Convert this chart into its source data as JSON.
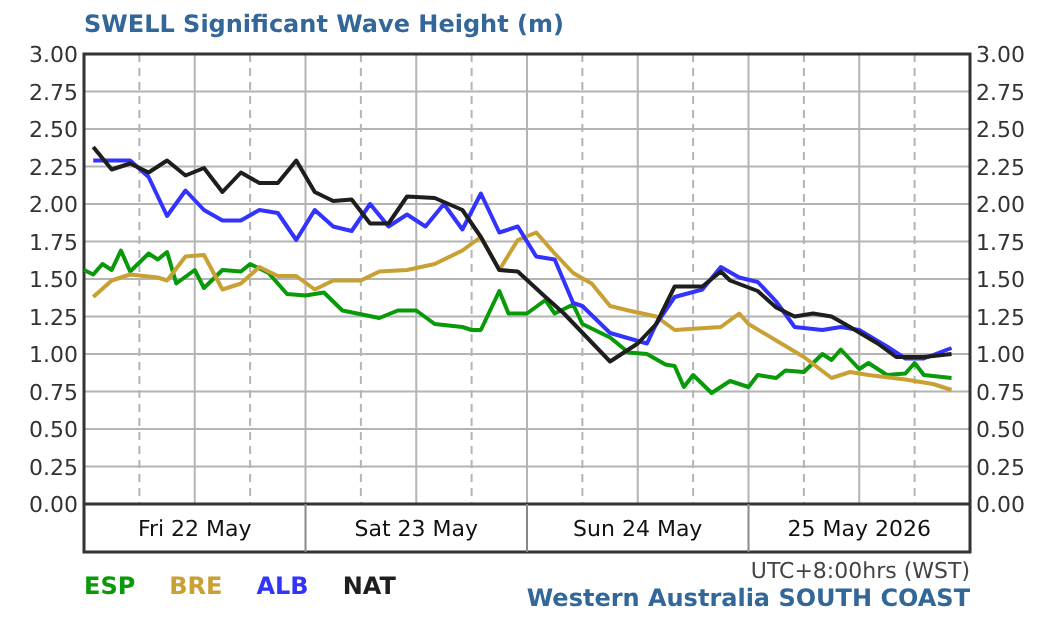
{
  "chart_data": {
    "type": "line",
    "title": "SWELL Significant Wave Height (m)",
    "annotations": [
      "UTC+8:00hrs (WST)",
      "Western Australia SOUTH COAST"
    ],
    "xlim": [
      "2026-05-22T00:00",
      "2026-05-26T00:00"
    ],
    "xticks": [
      {
        "value": "2026-05-22T00:00",
        "label": null
      },
      {
        "value": "2026-05-22T06:00",
        "label": null
      },
      {
        "value": "2026-05-22T12:00",
        "label": "Fri 22 May"
      },
      {
        "value": "2026-05-22T18:00",
        "label": null
      },
      {
        "value": "2026-05-23T00:00",
        "label": null
      },
      {
        "value": "2026-05-23T06:00",
        "label": null
      },
      {
        "value": "2026-05-23T12:00",
        "label": "Sat 23 May"
      },
      {
        "value": "2026-05-23T18:00",
        "label": null
      },
      {
        "value": "2026-05-24T00:00",
        "label": null
      },
      {
        "value": "2026-05-24T06:00",
        "label": null
      },
      {
        "value": "2026-05-24T12:00",
        "label": "Sun 24 May"
      },
      {
        "value": "2026-05-24T18:00",
        "label": null
      },
      {
        "value": "2026-05-25T00:00",
        "label": null
      },
      {
        "value": "2026-05-25T06:00",
        "label": null
      },
      {
        "value": "2026-05-25T12:00",
        "label": "25 May 2026"
      },
      {
        "value": "2026-05-25T18:00",
        "label": null
      },
      {
        "value": "2026-05-26T00:00",
        "label": null
      }
    ],
    "ylim": [
      0,
      3
    ],
    "yticks": [
      {
        "value": 0,
        "label": "0.00"
      },
      {
        "value": 0.25,
        "label": "0.25"
      },
      {
        "value": 0.5,
        "label": "0.50"
      },
      {
        "value": 0.75,
        "label": "0.75"
      },
      {
        "value": 1,
        "label": "1.00"
      },
      {
        "value": 1.25,
        "label": "1.25"
      },
      {
        "value": 1.5,
        "label": "1.50"
      },
      {
        "value": 1.75,
        "label": "1.75"
      },
      {
        "value": 2,
        "label": "2.00"
      },
      {
        "value": 2.25,
        "label": "2.25"
      },
      {
        "value": 2.5,
        "label": "2.50"
      },
      {
        "value": 2.75,
        "label": "2.75"
      },
      {
        "value": 3,
        "label": "3.00"
      }
    ],
    "y2lim": [
      0,
      3
    ],
    "y2ticks": [
      {
        "value": 0,
        "label": "0.00"
      },
      {
        "value": 0.25,
        "label": "0.25"
      },
      {
        "value": 0.5,
        "label": "0.50"
      },
      {
        "value": 0.75,
        "label": "0.75"
      },
      {
        "value": 1,
        "label": "1.00"
      },
      {
        "value": 1.25,
        "label": "1.25"
      },
      {
        "value": 1.5,
        "label": "1.50"
      },
      {
        "value": 1.75,
        "label": "1.75"
      },
      {
        "value": 2,
        "label": "2.00"
      },
      {
        "value": 2.25,
        "label": "2.25"
      },
      {
        "value": 2.5,
        "label": "2.50"
      },
      {
        "value": 2.75,
        "label": "2.75"
      },
      {
        "value": 3,
        "label": "3.00"
      }
    ],
    "grid": true,
    "legend": "bottom left",
    "marker": "none",
    "line_style": "solid",
    "series": [
      {
        "name": "ESP",
        "color": "#089a08",
        "x": [
          "2026-05-22T00:00",
          "2026-05-22T01:00",
          "2026-05-22T02:00",
          "2026-05-22T03:00",
          "2026-05-22T04:00",
          "2026-05-22T05:00",
          "2026-05-22T07:00",
          "2026-05-22T08:00",
          "2026-05-22T09:00",
          "2026-05-22T10:00",
          "2026-05-22T12:00",
          "2026-05-22T13:00",
          "2026-05-22T15:00",
          "2026-05-22T17:00",
          "2026-05-22T18:00",
          "2026-05-22T20:00",
          "2026-05-22T22:00",
          "2026-05-23T00:00",
          "2026-05-23T02:00",
          "2026-05-23T04:00",
          "2026-05-23T08:00",
          "2026-05-23T10:00",
          "2026-05-23T12:00",
          "2026-05-23T14:00",
          "2026-05-23T17:00",
          "2026-05-23T18:00",
          "2026-05-23T19:00",
          "2026-05-23T21:00",
          "2026-05-23T22:00",
          "2026-05-24T00:00",
          "2026-05-24T02:00",
          "2026-05-24T03:00",
          "2026-05-24T05:00",
          "2026-05-24T06:00",
          "2026-05-24T09:00",
          "2026-05-24T11:00",
          "2026-05-24T13:00",
          "2026-05-24T15:00",
          "2026-05-24T16:00",
          "2026-05-24T17:00",
          "2026-05-24T18:00",
          "2026-05-24T20:00",
          "2026-05-24T22:00",
          "2026-05-25T00:00",
          "2026-05-25T01:00",
          "2026-05-25T03:00",
          "2026-05-25T04:00",
          "2026-05-25T06:00",
          "2026-05-25T08:00",
          "2026-05-25T09:00",
          "2026-05-25T10:00",
          "2026-05-25T12:00",
          "2026-05-25T13:00",
          "2026-05-25T15:00",
          "2026-05-25T17:00",
          "2026-05-25T18:00",
          "2026-05-25T19:00",
          "2026-05-25T22:00"
        ],
        "values": [
          1.56,
          1.53,
          1.6,
          1.56,
          1.69,
          1.55,
          1.67,
          1.63,
          1.68,
          1.47,
          1.56,
          1.44,
          1.56,
          1.55,
          1.6,
          1.54,
          1.4,
          1.39,
          1.41,
          1.29,
          1.24,
          1.29,
          1.29,
          1.2,
          1.18,
          1.16,
          1.16,
          1.42,
          1.27,
          1.27,
          1.36,
          1.27,
          1.33,
          1.2,
          1.11,
          1.01,
          1.0,
          0.93,
          0.92,
          0.78,
          0.86,
          0.74,
          0.82,
          0.78,
          0.86,
          0.84,
          0.89,
          0.88,
          1.0,
          0.96,
          1.03,
          0.9,
          0.94,
          0.86,
          0.87,
          0.94,
          0.86,
          0.84
        ]
      },
      {
        "name": "BRE",
        "color": "#c9a033",
        "x": [
          "2026-05-22T01:00",
          "2026-05-22T03:00",
          "2026-05-22T05:00",
          "2026-05-22T08:00",
          "2026-05-22T09:00",
          "2026-05-22T11:00",
          "2026-05-22T13:00",
          "2026-05-22T15:00",
          "2026-05-22T17:00",
          "2026-05-22T19:00",
          "2026-05-22T21:00",
          "2026-05-22T23:00",
          "2026-05-23T01:00",
          "2026-05-23T03:00",
          "2026-05-23T06:00",
          "2026-05-23T08:00",
          "2026-05-23T11:00",
          "2026-05-23T14:00",
          "2026-05-23T17:00",
          "2026-05-23T19:00",
          "2026-05-23T21:00",
          "2026-05-23T23:00",
          "2026-05-24T01:00",
          "2026-05-24T03:00",
          "2026-05-24T05:00",
          "2026-05-24T07:00",
          "2026-05-24T09:00",
          "2026-05-24T11:00",
          "2026-05-24T14:00",
          "2026-05-24T16:00",
          "2026-05-24T21:00",
          "2026-05-24T23:00",
          "2026-05-25T00:00",
          "2026-05-25T03:00",
          "2026-05-25T06:00",
          "2026-05-25T09:00",
          "2026-05-25T11:00",
          "2026-05-25T13:00",
          "2026-05-25T17:00",
          "2026-05-25T20:00",
          "2026-05-25T22:00"
        ],
        "values": [
          1.38,
          1.49,
          1.53,
          1.51,
          1.49,
          1.65,
          1.66,
          1.43,
          1.47,
          1.58,
          1.52,
          1.52,
          1.43,
          1.49,
          1.49,
          1.55,
          1.56,
          1.6,
          1.69,
          1.78,
          1.56,
          1.76,
          1.81,
          1.67,
          1.54,
          1.47,
          1.32,
          1.29,
          1.25,
          1.16,
          1.18,
          1.27,
          1.2,
          1.09,
          0.98,
          0.84,
          0.88,
          0.86,
          0.83,
          0.8,
          0.76
        ]
      },
      {
        "name": "ALB",
        "color": "#3333ff",
        "x": [
          "2026-05-22T01:00",
          "2026-05-22T05:00",
          "2026-05-22T07:00",
          "2026-05-22T09:00",
          "2026-05-22T11:00",
          "2026-05-22T13:00",
          "2026-05-22T15:00",
          "2026-05-22T17:00",
          "2026-05-22T19:00",
          "2026-05-22T21:00",
          "2026-05-22T23:00",
          "2026-05-23T01:00",
          "2026-05-23T03:00",
          "2026-05-23T05:00",
          "2026-05-23T07:00",
          "2026-05-23T09:00",
          "2026-05-23T11:00",
          "2026-05-23T13:00",
          "2026-05-23T15:00",
          "2026-05-23T17:00",
          "2026-05-23T19:00",
          "2026-05-23T21:00",
          "2026-05-23T23:00",
          "2026-05-24T01:00",
          "2026-05-24T03:00",
          "2026-05-24T05:00",
          "2026-05-24T06:00",
          "2026-05-24T09:00",
          "2026-05-24T13:00",
          "2026-05-24T14:00",
          "2026-05-24T16:00",
          "2026-05-24T19:00",
          "2026-05-24T21:00",
          "2026-05-24T23:00",
          "2026-05-25T01:00",
          "2026-05-25T03:00",
          "2026-05-25T05:00",
          "2026-05-25T08:00",
          "2026-05-25T10:00",
          "2026-05-25T12:00",
          "2026-05-25T15:00",
          "2026-05-25T17:00",
          "2026-05-25T19:00",
          "2026-05-25T22:00"
        ],
        "values": [
          2.29,
          2.29,
          2.18,
          1.92,
          2.09,
          1.96,
          1.89,
          1.89,
          1.96,
          1.94,
          1.76,
          1.96,
          1.85,
          1.82,
          2.0,
          1.85,
          1.93,
          1.85,
          2.0,
          1.83,
          2.07,
          1.81,
          1.85,
          1.65,
          1.63,
          1.34,
          1.32,
          1.14,
          1.07,
          1.2,
          1.38,
          1.43,
          1.58,
          1.51,
          1.48,
          1.35,
          1.18,
          1.16,
          1.18,
          1.16,
          1.05,
          0.97,
          0.97,
          1.04
        ]
      },
      {
        "name": "NAT",
        "color": "#1e1e1e",
        "x": [
          "2026-05-22T01:00",
          "2026-05-22T03:00",
          "2026-05-22T05:00",
          "2026-05-22T07:00",
          "2026-05-22T09:00",
          "2026-05-22T11:00",
          "2026-05-22T13:00",
          "2026-05-22T15:00",
          "2026-05-22T17:00",
          "2026-05-22T19:00",
          "2026-05-22T21:00",
          "2026-05-22T23:00",
          "2026-05-23T01:00",
          "2026-05-23T03:00",
          "2026-05-23T05:00",
          "2026-05-23T07:00",
          "2026-05-23T09:00",
          "2026-05-23T11:00",
          "2026-05-23T14:00",
          "2026-05-23T17:00",
          "2026-05-23T19:00",
          "2026-05-23T21:00",
          "2026-05-23T23:00",
          "2026-05-24T02:00",
          "2026-05-24T04:00",
          "2026-05-24T09:00",
          "2026-05-24T12:00",
          "2026-05-24T14:00",
          "2026-05-24T16:00",
          "2026-05-24T19:00",
          "2026-05-24T21:00",
          "2026-05-24T22:00",
          "2026-05-25T01:00",
          "2026-05-25T03:00",
          "2026-05-25T05:00",
          "2026-05-25T07:00",
          "2026-05-25T09:00",
          "2026-05-25T11:00",
          "2026-05-25T14:00",
          "2026-05-25T16:00",
          "2026-05-25T19:00",
          "2026-05-25T22:00"
        ],
        "values": [
          2.38,
          2.23,
          2.27,
          2.21,
          2.29,
          2.19,
          2.24,
          2.08,
          2.21,
          2.14,
          2.14,
          2.29,
          2.08,
          2.02,
          2.03,
          1.87,
          1.87,
          2.05,
          2.04,
          1.96,
          1.78,
          1.56,
          1.55,
          1.38,
          1.27,
          0.95,
          1.07,
          1.2,
          1.45,
          1.45,
          1.55,
          1.49,
          1.42,
          1.31,
          1.25,
          1.27,
          1.25,
          1.18,
          1.07,
          0.98,
          0.98,
          1.0
        ]
      }
    ]
  }
}
